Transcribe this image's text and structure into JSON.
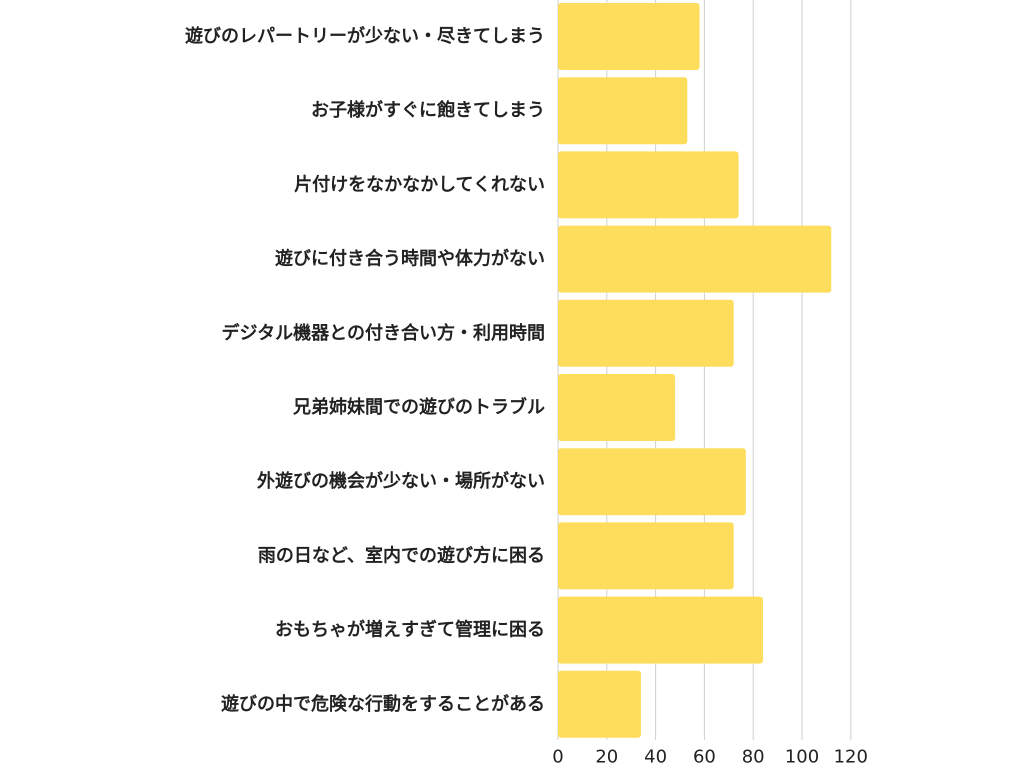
{
  "chart_data": {
    "type": "bar",
    "orientation": "horizontal",
    "categories": [
      "遊びのレパートリーが少ない・尽きてしまう",
      "お子様がすぐに飽きてしまう",
      "片付けをなかなかしてくれない",
      "遊びに付き合う時間や体力がない",
      "デジタル機器との付き合い方・利用時間",
      "兄弟姉妹間での遊びのトラブル",
      "外遊びの機会が少ない・場所がない",
      "雨の日など、室内での遊び方に困る",
      "おもちゃが増えすぎて管理に困る",
      "遊びの中で危険な行動をすることがある"
    ],
    "values": [
      58,
      53,
      74,
      112,
      72,
      48,
      77,
      72,
      84,
      34
    ],
    "xlim": [
      0,
      120
    ],
    "xticks": [
      "0",
      "20",
      "40",
      "60",
      "80",
      "100",
      "120"
    ],
    "xtick_values": [
      0,
      20,
      40,
      60,
      80,
      100,
      120
    ],
    "grid": true,
    "legend": "none",
    "bar_color": "#FFDD5C",
    "title": "",
    "xlabel": "",
    "ylabel": ""
  }
}
